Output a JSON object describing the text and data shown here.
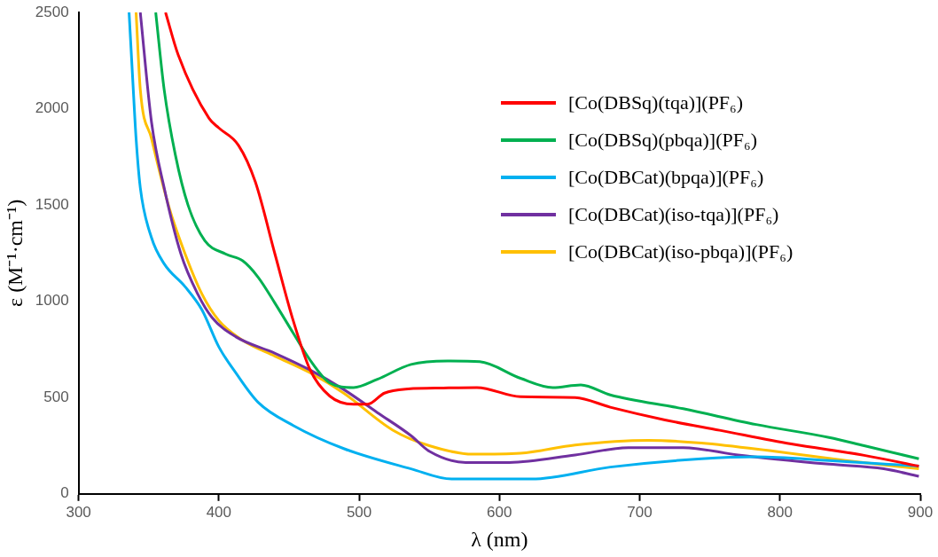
{
  "chart_data": {
    "type": "line",
    "xlabel": "λ (nm)",
    "ylabel": "ε (M⁻¹·cm⁻¹)",
    "xlim": [
      300,
      900
    ],
    "xticks": [
      300,
      400,
      500,
      600,
      700,
      800,
      900
    ],
    "ylim": [
      0,
      2500
    ],
    "yticks": [
      0,
      500,
      1000,
      1500,
      2000,
      2500
    ],
    "grid": false,
    "legend": "top right",
    "marker": "none",
    "line_style": "solid",
    "series": [
      {
        "name": "[Co(DBSq)(tqa)](PF₆)",
        "color": "#ff0000",
        "x": [
          362,
          371,
          393,
          400,
          414,
          426,
          440,
          453,
          465,
          479,
          496,
          506,
          518,
          535,
          560,
          584,
          615,
          654,
          679,
          718,
          757,
          808,
          860,
          899
        ],
        "values": [
          2500,
          2280,
          1950,
          1900,
          1810,
          1620,
          1245,
          900,
          645,
          508,
          465,
          465,
          523,
          545,
          550,
          552,
          504,
          500,
          450,
          384,
          330,
          259,
          200,
          144
        ]
      },
      {
        "name": "[Co(DBSq)(pbqa)](PF₆)",
        "color": "#00b050",
        "x": [
          355,
          361,
          369,
          378,
          390,
          405,
          417,
          428,
          440,
          453,
          465,
          479,
          496,
          513,
          537,
          563,
          586,
          615,
          638,
          658,
          679,
          731,
          783,
          835,
          860,
          899
        ],
        "values": [
          2500,
          2100,
          1760,
          1500,
          1315,
          1245,
          1210,
          1125,
          990,
          835,
          695,
          576,
          552,
          595,
          672,
          690,
          686,
          600,
          552,
          566,
          514,
          442,
          360,
          293,
          250,
          182
        ]
      },
      {
        "name": "[Co(DBCat)(bpqa)](PF₆)",
        "color": "#00b0f0",
        "x": [
          336,
          339,
          341,
          344,
          352,
          361,
          376,
          388,
          400,
          412,
          428,
          453,
          489,
          537,
          566,
          623,
          679,
          744,
          783,
          835,
          899
        ],
        "values": [
          2500,
          2100,
          1845,
          1590,
          1330,
          1195,
          1075,
          955,
          763,
          629,
          475,
          355,
          235,
          130,
          77,
          77,
          139,
          182,
          192,
          173,
          144
        ]
      },
      {
        "name": "[Co(DBCat)(iso-tqa)](PF₆)",
        "color": "#7030a0",
        "x": [
          344,
          352,
          361,
          373,
          385,
          395,
          412,
          440,
          465,
          489,
          513,
          537,
          550,
          576,
          607,
          654,
          692,
          731,
          770,
          835,
          874,
          899
        ],
        "values": [
          2500,
          1930,
          1590,
          1245,
          1037,
          917,
          816,
          730,
          643,
          542,
          422,
          302,
          221,
          163,
          163,
          202,
          240,
          240,
          202,
          154,
          130,
          91
        ]
      },
      {
        "name": "[Co(DBCat)(iso-pbqa)](PF₆)",
        "color": "#ffc000",
        "x": [
          341,
          344,
          352,
          364,
          376,
          388,
          400,
          417,
          440,
          465,
          489,
          524,
          550,
          581,
          615,
          654,
          706,
          744,
          796,
          847,
          899
        ],
        "values": [
          2500,
          2100,
          1845,
          1500,
          1245,
          1037,
          900,
          797,
          715,
          629,
          523,
          331,
          250,
          206,
          211,
          254,
          278,
          264,
          221,
          173,
          130
        ]
      }
    ]
  }
}
